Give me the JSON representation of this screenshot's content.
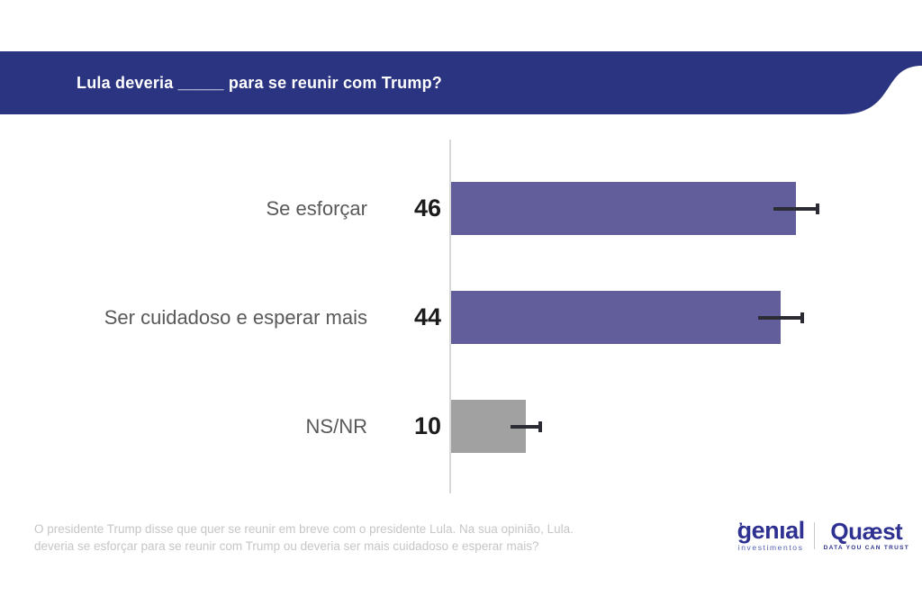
{
  "header": {
    "title": "Lula deveria _____ para se reunir com Trump?",
    "bg_color": "#2b3480"
  },
  "chart_data": {
    "type": "bar",
    "orientation": "horizontal",
    "categories": [
      "Se esforçar",
      "Ser cuidadoso e esperar mais",
      "NS/NR"
    ],
    "values": [
      46,
      44,
      10
    ],
    "value_labels": [
      "46",
      "44",
      "10"
    ],
    "error_margins": [
      3,
      3,
      2
    ],
    "bar_colors": [
      "#615e9b",
      "#615e9b",
      "#a1a1a1"
    ],
    "error_color": "#2b2b33",
    "xlim": [
      0,
      55
    ],
    "grid": false,
    "legend": false,
    "title": "Lula deveria _____ para se reunir com Trump?"
  },
  "footnote": {
    "line1": "O presidente Trump disse que quer se reunir em breve com o presidente Lula.  Na sua opinião, Lula.",
    "line2": "deveria se esforçar para se reunir com Trump ou deveria ser mais cuidadoso e esperar mais?"
  },
  "logos": {
    "genial": {
      "name": "genıal",
      "mark": "’’",
      "tagline": "investimentos"
    },
    "quaest": {
      "name": "Quæst",
      "tagline": "DATA YOU CAN TRUST"
    }
  },
  "colors": {
    "header_blue": "#2b3480",
    "bar_purple": "#615e9b",
    "bar_gray": "#a1a1a1",
    "axis_gray": "#d8d8d8",
    "label_gray": "#595959",
    "value_black": "#1c1c1c",
    "footnote_gray": "#c6c6c6",
    "logo_navy": "#2e3192"
  }
}
